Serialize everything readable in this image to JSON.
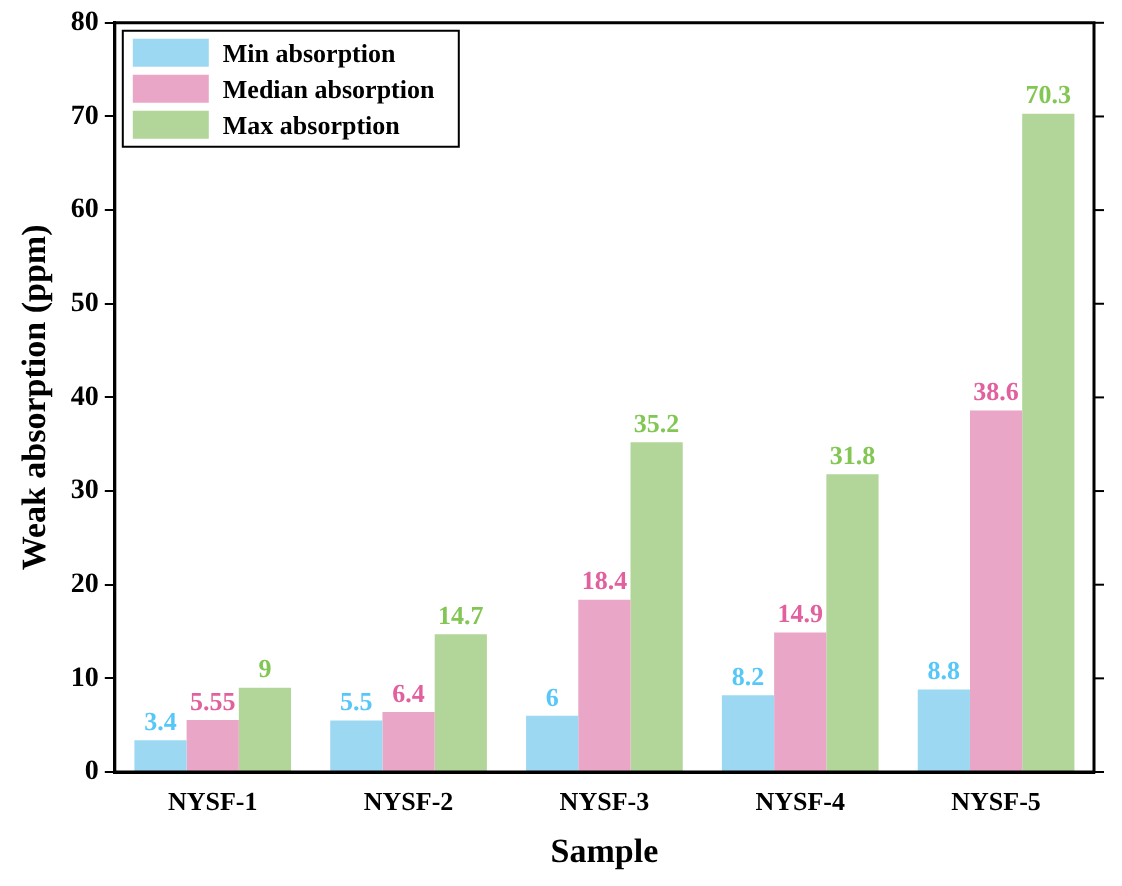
{
  "chart_data": {
    "type": "bar",
    "xlabel": "Sample",
    "ylabel": "Weak absorption (ppm)",
    "categories": [
      "NYSF-1",
      "NYSF-2",
      "NYSF-3",
      "NYSF-4",
      "NYSF-5"
    ],
    "series": [
      {
        "name": "Min absorption",
        "color": "#9dd8f2",
        "values": [
          3.4,
          5.5,
          6,
          8.2,
          8.8
        ]
      },
      {
        "name": "Median absorption",
        "color": "#eaa6c6",
        "values": [
          5.55,
          6.4,
          18.4,
          14.9,
          38.6
        ]
      },
      {
        "name": "Max absorption",
        "color": "#b2d69a",
        "values": [
          9,
          14.7,
          35.2,
          31.8,
          70.3
        ]
      }
    ],
    "ylim": [
      0,
      80
    ],
    "yticks": [
      0,
      10,
      20,
      30,
      40,
      50,
      60,
      70,
      80
    ],
    "grid": false,
    "legend": "top left",
    "data_labels": true
  }
}
